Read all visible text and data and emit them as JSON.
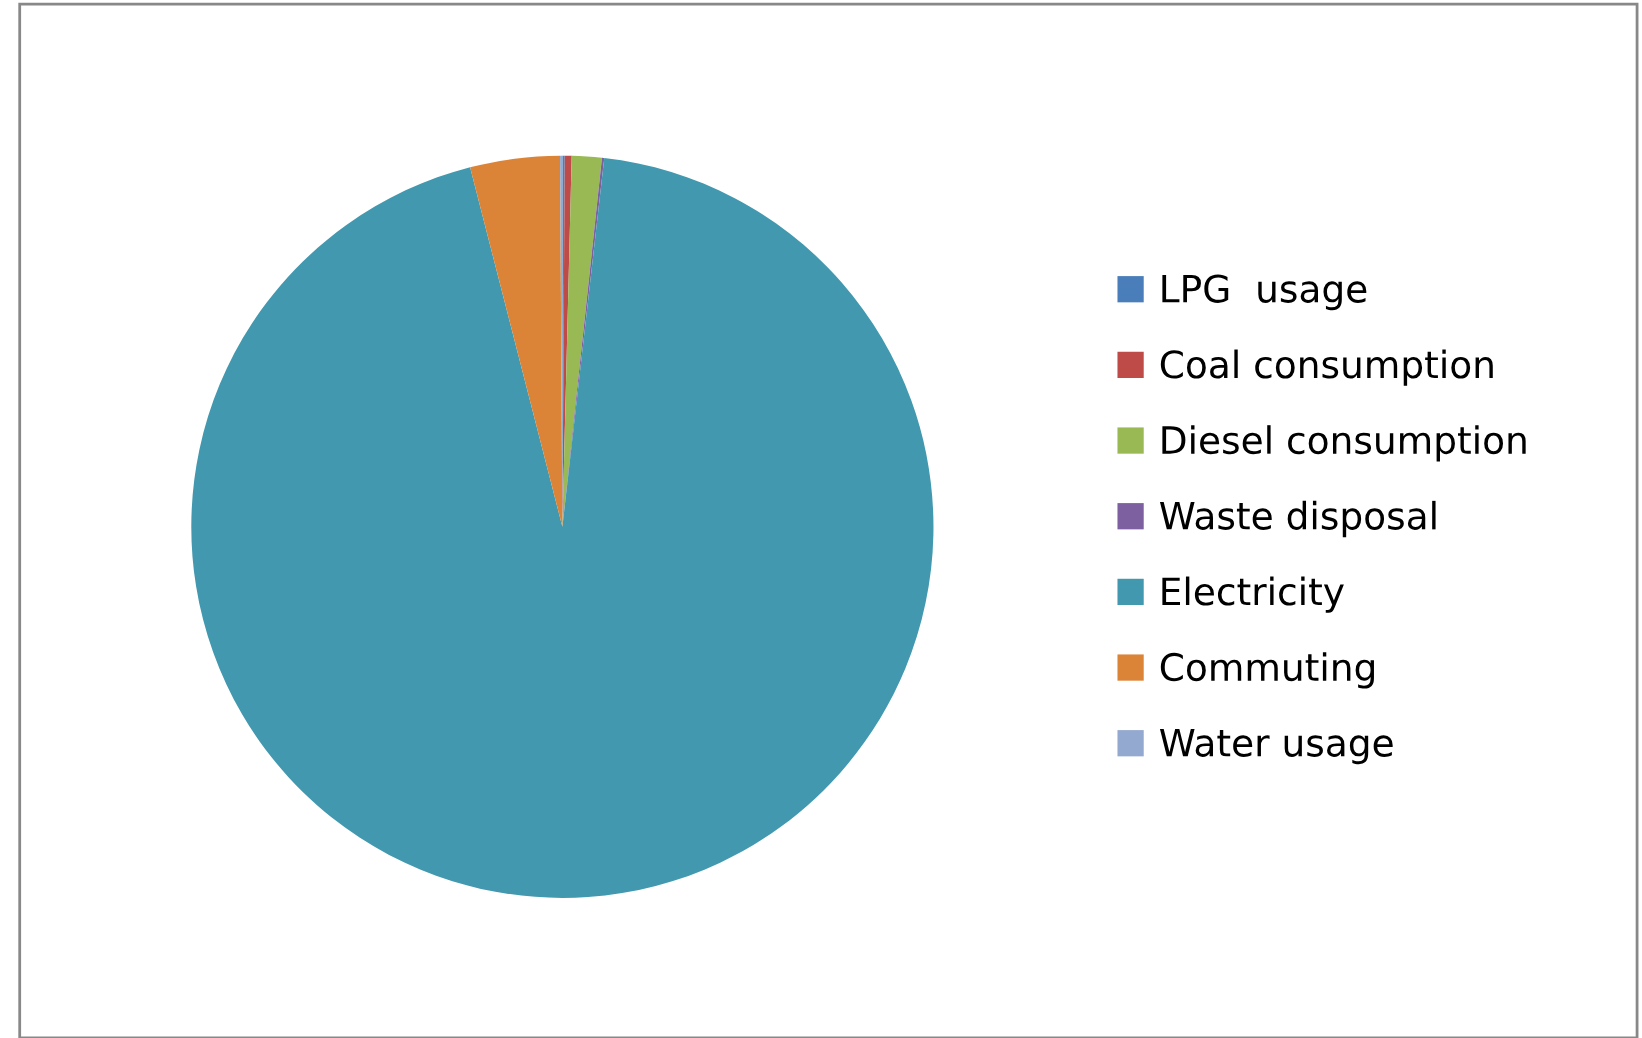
{
  "chart_data": {
    "type": "pie",
    "categories": [
      "LPG  usage",
      "Coal consumption",
      "Diesel consumption",
      "Waste disposal",
      "Electricity",
      "Commuting",
      "Water usage"
    ],
    "values": [
      0.1,
      0.3,
      1.3,
      0.1,
      94.2,
      3.9,
      0.1
    ],
    "colors": [
      "#4a7ebb",
      "#be4b48",
      "#98b954",
      "#7d60a0",
      "#4198af",
      "#db8438",
      "#93a9cf"
    ],
    "legend": "right"
  }
}
